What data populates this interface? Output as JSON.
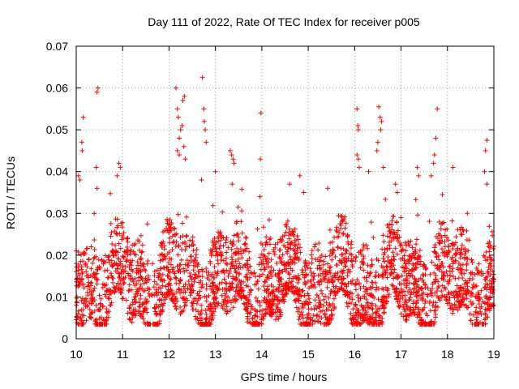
{
  "chart_data": {
    "type": "scatter",
    "title": "Day 111 of 2022, Rate Of TEC Index for receiver p005",
    "xlabel": "GPS time / hours",
    "ylabel": "ROTI / TECUs",
    "xlim": [
      10,
      19
    ],
    "ylim": [
      0,
      0.07
    ],
    "xticks": [
      "10",
      "11",
      "12",
      "13",
      "14",
      "15",
      "16",
      "17",
      "18",
      "19"
    ],
    "yticks": [
      "0",
      "0.01",
      "0.02",
      "0.03",
      "0.04",
      "0.05",
      "0.06",
      "0.07"
    ],
    "grid": true,
    "marker": "plus",
    "color": "#ff0000",
    "series": [
      {
        "name": "ROTI",
        "baseline_min": 0.005,
        "baseline_max": 0.03,
        "points": [
          [
            10.05,
            0.039
          ],
          [
            10.08,
            0.038
          ],
          [
            10.12,
            0.047
          ],
          [
            10.13,
            0.045
          ],
          [
            10.15,
            0.053
          ],
          [
            10.45,
            0.059
          ],
          [
            10.47,
            0.06
          ],
          [
            10.45,
            0.036
          ],
          [
            10.43,
            0.041
          ],
          [
            10.92,
            0.042
          ],
          [
            10.88,
            0.039
          ],
          [
            10.95,
            0.041
          ],
          [
            12.15,
            0.06
          ],
          [
            12.18,
            0.055
          ],
          [
            12.2,
            0.053
          ],
          [
            12.22,
            0.048
          ],
          [
            12.25,
            0.05
          ],
          [
            12.28,
            0.051
          ],
          [
            12.3,
            0.057
          ],
          [
            12.33,
            0.058
          ],
          [
            12.18,
            0.045
          ],
          [
            12.22,
            0.044
          ],
          [
            12.32,
            0.046
          ],
          [
            12.35,
            0.043
          ],
          [
            12.72,
            0.0625
          ],
          [
            12.75,
            0.055
          ],
          [
            12.76,
            0.052
          ],
          [
            12.78,
            0.05
          ],
          [
            12.8,
            0.047
          ],
          [
            12.7,
            0.038
          ],
          [
            13.0,
            0.04
          ],
          [
            13.32,
            0.045
          ],
          [
            13.35,
            0.044
          ],
          [
            13.38,
            0.043
          ],
          [
            13.4,
            0.042
          ],
          [
            13.36,
            0.037
          ],
          [
            13.98,
            0.054
          ],
          [
            13.97,
            0.043
          ],
          [
            13.96,
            0.034
          ],
          [
            14.6,
            0.037
          ],
          [
            14.82,
            0.039
          ],
          [
            14.9,
            0.035
          ],
          [
            15.42,
            0.036
          ],
          [
            16.05,
            0.055
          ],
          [
            16.07,
            0.051
          ],
          [
            16.08,
            0.05
          ],
          [
            16.05,
            0.044
          ],
          [
            16.08,
            0.043
          ],
          [
            16.52,
            0.0555
          ],
          [
            16.55,
            0.053
          ],
          [
            16.58,
            0.052
          ],
          [
            16.56,
            0.05
          ],
          [
            16.5,
            0.047
          ],
          [
            16.48,
            0.045
          ],
          [
            16.62,
            0.041
          ],
          [
            16.3,
            0.04
          ],
          [
            16.1,
            0.041
          ],
          [
            16.88,
            0.037
          ],
          [
            16.92,
            0.035
          ],
          [
            17.35,
            0.041
          ],
          [
            17.38,
            0.039
          ],
          [
            17.65,
            0.039
          ],
          [
            17.78,
            0.055
          ],
          [
            17.75,
            0.048
          ],
          [
            17.72,
            0.044
          ],
          [
            17.7,
            0.042
          ],
          [
            18.12,
            0.041
          ],
          [
            18.85,
            0.0475
          ],
          [
            18.82,
            0.045
          ],
          [
            18.8,
            0.04
          ],
          [
            18.85,
            0.037
          ]
        ]
      }
    ]
  }
}
